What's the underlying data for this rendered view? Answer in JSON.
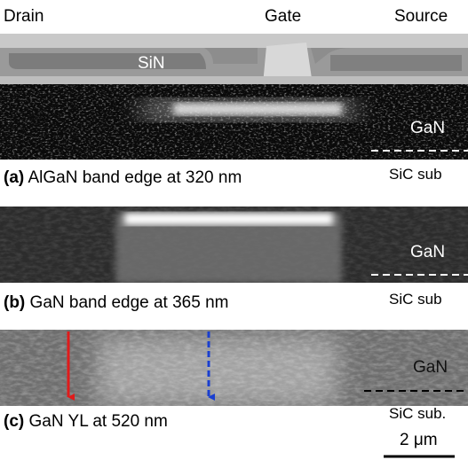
{
  "terminals": [
    "Drain",
    "Gate",
    "Source"
  ],
  "sin_label": "SiN",
  "panels": [
    {
      "label": "(a)",
      "caption": "AlGaN band edge at 320 nm",
      "layer_top": "GaN",
      "layer_bottom": "SiC sub"
    },
    {
      "label": "(b)",
      "caption": "GaN band edge at 365 nm",
      "layer_top": "GaN",
      "layer_bottom": "SiC sub"
    },
    {
      "label": "(c)",
      "caption": "GaN YL at 520 nm",
      "layer_top": "GaN",
      "layer_bottom": "SiC sub."
    }
  ],
  "scale_bar": "2 μm"
}
